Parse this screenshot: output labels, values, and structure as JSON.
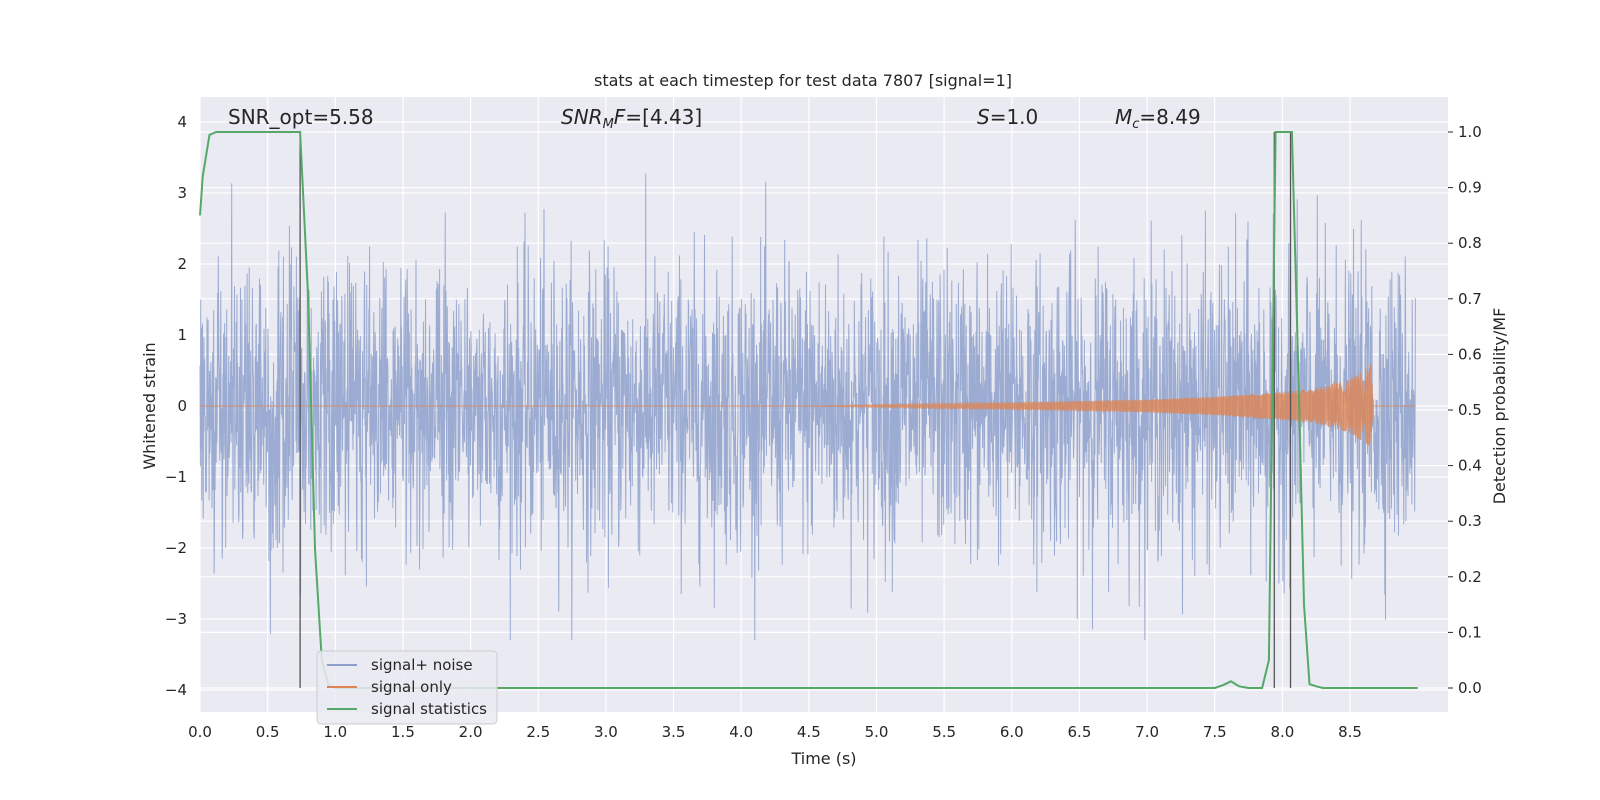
{
  "chart_data": {
    "type": "line",
    "title": "stats at each timestep for test data 7807 [signal=1]",
    "xlabel": "Time (s)",
    "ylabel": "Whitened strain",
    "y2label": "Detection probability/MF",
    "xlim": [
      0.0,
      9.0
    ],
    "ylim": [
      -4.2,
      4.4
    ],
    "y2lim": [
      -0.045,
      1.045
    ],
    "grid": true,
    "style": "seaborn-darkgrid",
    "xticks": [
      "0.0",
      "0.5",
      "1.0",
      "1.5",
      "2.0",
      "2.5",
      "3.0",
      "3.5",
      "4.0",
      "4.5",
      "5.0",
      "5.5",
      "6.0",
      "6.5",
      "7.0",
      "7.5",
      "8.0",
      "8.5"
    ],
    "yticks": [
      "4",
      "3",
      "2",
      "1",
      "0",
      "−1",
      "−2",
      "−3",
      "−4"
    ],
    "y2ticks": [
      "1.0",
      "0.9",
      "0.8",
      "0.7",
      "0.6",
      "0.5",
      "0.4",
      "0.3",
      "0.2",
      "0.1",
      "0.0"
    ],
    "annotations": {
      "snr_opt": "SNR_opt=5.58",
      "snr_mf": "[4.43]",
      "s": "=1.0",
      "mc": "=8.49"
    },
    "series": [
      {
        "name": "signal+ noise",
        "color": "#8da0cb",
        "description_values": {
          "amplitude_rms": 1.0,
          "approx_range": [
            -3.3,
            3.4
          ]
        }
      },
      {
        "name": "signal only",
        "color": "#dd8452",
        "x": [
          0.0,
          4.5,
          5.0,
          6.0,
          7.0,
          7.5,
          8.0,
          8.3,
          8.5,
          8.62,
          8.66,
          8.67,
          9.0
        ],
        "envelope": [
          0.0,
          0.0,
          0.02,
          0.05,
          0.09,
          0.13,
          0.2,
          0.27,
          0.38,
          0.55,
          0.6,
          0.0,
          0.0
        ]
      },
      {
        "name": "signal statistics",
        "color": "#55a868",
        "axis": "right",
        "x": [
          0.0,
          0.02,
          0.07,
          0.12,
          0.3,
          0.5,
          0.6,
          0.7,
          0.74,
          0.8,
          0.85,
          0.9,
          0.95,
          1.0,
          7.5,
          7.56,
          7.62,
          7.68,
          7.75,
          7.85,
          7.9,
          7.95,
          8.0,
          8.07,
          8.12,
          8.16,
          8.2,
          8.25,
          8.3,
          9.0
        ],
        "y": [
          0.85,
          0.92,
          0.995,
          1.0,
          1.0,
          1.0,
          1.0,
          1.0,
          1.0,
          0.7,
          0.25,
          0.05,
          0.005,
          0.0,
          0.0,
          0.005,
          0.012,
          0.003,
          0.0,
          0.0,
          0.05,
          1.0,
          1.0,
          1.0,
          0.55,
          0.15,
          0.007,
          0.003,
          0.0,
          0.0
        ]
      }
    ],
    "vlines": [
      {
        "x": 0.74,
        "ymin": 0.0,
        "ymax": 1.0,
        "axis": "right"
      },
      {
        "x": 7.94,
        "ymin": 0.0,
        "ymax": 1.0,
        "axis": "right"
      },
      {
        "x": 8.06,
        "ymin": 0.0,
        "ymax": 1.0,
        "axis": "right"
      }
    ],
    "legend_position": "bottom-left"
  }
}
